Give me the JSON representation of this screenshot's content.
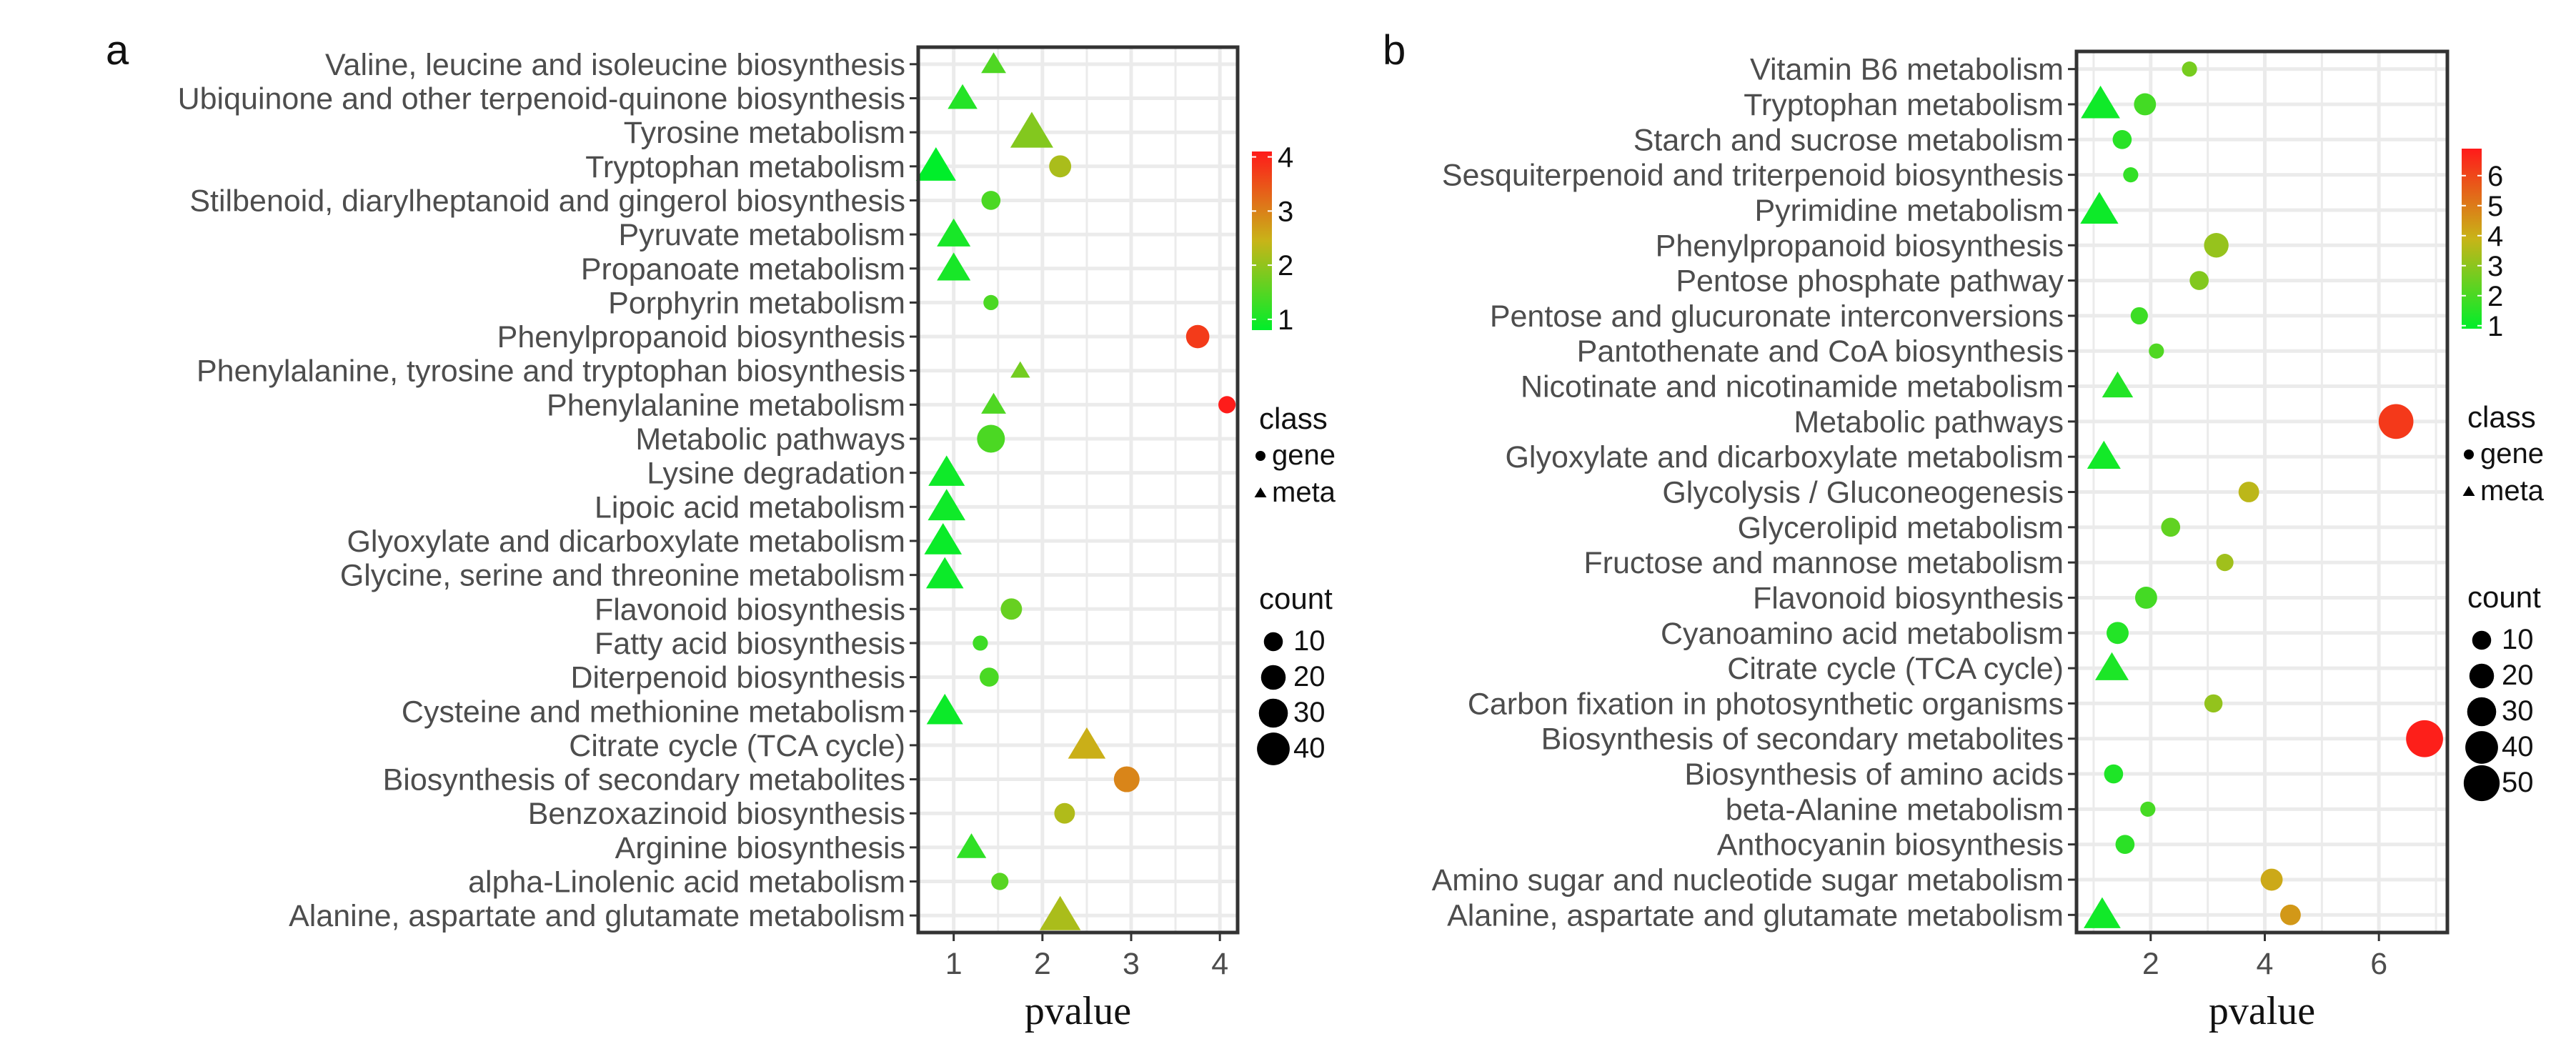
{
  "chart_data": [
    {
      "type": "scatter",
      "panel": "a",
      "xlabel": "pvalue",
      "xlim": [
        0.6,
        4.2
      ],
      "xticks": [
        1,
        2,
        3,
        4
      ],
      "categories": [
        "Valine, leucine and isoleucine biosynthesis",
        "Ubiquinone and other terpenoid-quinone biosynthesis",
        "Tyrosine metabolism",
        "Tryptophan metabolism",
        "Stilbenoid, diarylheptanoid and gingerol biosynthesis",
        "Pyruvate metabolism",
        "Propanoate metabolism",
        "Porphyrin metabolism",
        "Phenylpropanoid biosynthesis",
        "Phenylalanine, tyrosine and tryptophan biosynthesis",
        "Phenylalanine metabolism",
        "Metabolic pathways",
        "Lysine degradation",
        "Lipoic acid metabolism",
        "Glyoxylate and dicarboxylate metabolism",
        "Glycine, serine and threonine metabolism",
        "Flavonoid biosynthesis",
        "Fatty acid biosynthesis",
        "Diterpenoid biosynthesis",
        "Cysteine and methionine metabolism",
        "Citrate cycle (TCA cycle)",
        "Biosynthesis of secondary metabolites",
        "Benzoxazinoid biosynthesis",
        "Arginine biosynthesis",
        "alpha-Linolenic acid metabolism",
        "Alanine, aspartate and glutamate metabolism"
      ],
      "points": [
        {
          "category": "Valine, leucine and isoleucine biosynthesis",
          "pvalue": 1.45,
          "class": "meta",
          "count": 10
        },
        {
          "category": "Ubiquinone and other terpenoid-quinone biosynthesis",
          "pvalue": 1.1,
          "class": "meta",
          "count": 16
        },
        {
          "category": "Tyrosine metabolism",
          "pvalue": 1.88,
          "class": "meta",
          "count": 40
        },
        {
          "category": "Tryptophan metabolism",
          "pvalue": 0.8,
          "class": "meta",
          "count": 34
        },
        {
          "category": "Tryptophan metabolism",
          "pvalue": 2.2,
          "class": "gene",
          "count": 12
        },
        {
          "category": "Stilbenoid, diarylheptanoid and gingerol biosynthesis",
          "pvalue": 1.42,
          "class": "gene",
          "count": 8
        },
        {
          "category": "Pyruvate metabolism",
          "pvalue": 1.0,
          "class": "meta",
          "count": 22
        },
        {
          "category": "Propanoate metabolism",
          "pvalue": 1.0,
          "class": "meta",
          "count": 22
        },
        {
          "category": "Porphyrin metabolism",
          "pvalue": 1.42,
          "class": "gene",
          "count": 4
        },
        {
          "category": "Phenylpropanoid biosynthesis",
          "pvalue": 3.75,
          "class": "gene",
          "count": 14
        },
        {
          "category": "Phenylalanine, tyrosine and tryptophan biosynthesis",
          "pvalue": 1.75,
          "class": "meta",
          "count": 5
        },
        {
          "category": "Phenylalanine metabolism",
          "pvalue": 4.08,
          "class": "gene",
          "count": 6
        },
        {
          "category": "Phenylalanine metabolism",
          "pvalue": 1.45,
          "class": "meta",
          "count": 10
        },
        {
          "category": "Metabolic pathways",
          "pvalue": 1.42,
          "class": "gene",
          "count": 22
        },
        {
          "category": "Lysine degradation",
          "pvalue": 0.92,
          "class": "meta",
          "count": 27
        },
        {
          "category": "Lipoic acid metabolism",
          "pvalue": 0.92,
          "class": "meta",
          "count": 29
        },
        {
          "category": "Glyoxylate and dicarboxylate metabolism",
          "pvalue": 0.88,
          "class": "meta",
          "count": 29
        },
        {
          "category": "Glycine, serine and threonine metabolism",
          "pvalue": 0.9,
          "class": "meta",
          "count": 29
        },
        {
          "category": "Flavonoid biosynthesis",
          "pvalue": 1.65,
          "class": "gene",
          "count": 11
        },
        {
          "category": "Fatty acid biosynthesis",
          "pvalue": 1.3,
          "class": "gene",
          "count": 4
        },
        {
          "category": "Diterpenoid biosynthesis",
          "pvalue": 1.4,
          "class": "gene",
          "count": 8
        },
        {
          "category": "Cysteine and methionine metabolism",
          "pvalue": 0.9,
          "class": "meta",
          "count": 27
        },
        {
          "category": "Citrate cycle (TCA cycle)",
          "pvalue": 2.5,
          "class": "meta",
          "count": 29
        },
        {
          "category": "Biosynthesis of secondary metabolites",
          "pvalue": 2.95,
          "class": "gene",
          "count": 18
        },
        {
          "category": "Benzoxazinoid biosynthesis",
          "pvalue": 2.25,
          "class": "gene",
          "count": 10
        },
        {
          "category": "Arginine biosynthesis",
          "pvalue": 1.2,
          "class": "meta",
          "count": 16
        },
        {
          "category": "alpha-Linolenic acid metabolism",
          "pvalue": 1.52,
          "class": "gene",
          "count": 6
        },
        {
          "category": "Alanine, aspartate and glutamate metabolism",
          "pvalue": 2.2,
          "class": "meta",
          "count": 36
        }
      ],
      "color_scale": {
        "min": 0.8,
        "max": 4.1,
        "ticks": [
          1,
          2,
          3,
          4
        ],
        "low": "#00ee2a",
        "mid": "#c8b418",
        "high": "#ff1a1a"
      },
      "class_legend": {
        "title": "class",
        "items": [
          {
            "label": "gene",
            "shape": "circle"
          },
          {
            "label": "meta",
            "shape": "triangle"
          }
        ]
      },
      "size_legend": {
        "title": "count",
        "values": [
          10,
          20,
          30,
          40
        ]
      }
    },
    {
      "type": "scatter",
      "panel": "b",
      "xlabel": "pvalue",
      "xlim": [
        0.7,
        7.2
      ],
      "xticks": [
        2,
        4,
        6
      ],
      "categories": [
        "Vitamin B6 metabolism",
        "Tryptophan metabolism",
        "Starch and sucrose metabolism",
        "Sesquiterpenoid and triterpenoid biosynthesis",
        "Pyrimidine metabolism",
        "Phenylpropanoid biosynthesis",
        "Pentose phosphate pathway",
        "Pentose and glucuronate interconversions",
        "Pantothenate and CoA biosynthesis",
        "Nicotinate and nicotinamide metabolism",
        "Metabolic pathways",
        "Glyoxylate and dicarboxylate metabolism",
        "Glycolysis / Gluconeogenesis",
        "Glycerolipid metabolism",
        "Fructose and mannose metabolism",
        "Flavonoid biosynthesis",
        "Cyanoamino acid metabolism",
        "Citrate cycle (TCA cycle)",
        "Carbon fixation in photosynthetic organisms",
        "Biosynthesis of secondary metabolites",
        "Biosynthesis of amino acids",
        "beta-Alanine metabolism",
        "Anthocyanin biosynthesis",
        "Amino sugar and nucleotide sugar metabolism",
        "Alanine, aspartate and glutamate metabolism"
      ],
      "points": [
        {
          "category": "Vitamin B6 metabolism",
          "pvalue": 2.68,
          "class": "gene",
          "count": 4
        },
        {
          "category": "Tryptophan metabolism",
          "pvalue": 1.12,
          "class": "meta",
          "count": 32
        },
        {
          "category": "Tryptophan metabolism",
          "pvalue": 1.9,
          "class": "gene",
          "count": 12
        },
        {
          "category": "Starch and sucrose metabolism",
          "pvalue": 1.5,
          "class": "gene",
          "count": 8
        },
        {
          "category": "Sesquiterpenoid and triterpenoid biosynthesis",
          "pvalue": 1.65,
          "class": "gene",
          "count": 4
        },
        {
          "category": "Pyrimidine metabolism",
          "pvalue": 1.1,
          "class": "meta",
          "count": 30
        },
        {
          "category": "Phenylpropanoid biosynthesis",
          "pvalue": 3.15,
          "class": "gene",
          "count": 16
        },
        {
          "category": "Pentose phosphate pathway",
          "pvalue": 2.85,
          "class": "gene",
          "count": 8
        },
        {
          "category": "Pentose and glucuronate interconversions",
          "pvalue": 1.8,
          "class": "gene",
          "count": 6
        },
        {
          "category": "Pantothenate and CoA biosynthesis",
          "pvalue": 2.1,
          "class": "gene",
          "count": 4
        },
        {
          "category": "Nicotinate and nicotinamide metabolism",
          "pvalue": 1.42,
          "class": "meta",
          "count": 18
        },
        {
          "category": "Metabolic pathways",
          "pvalue": 6.3,
          "class": "gene",
          "count": 38
        },
        {
          "category": "Glyoxylate and dicarboxylate metabolism",
          "pvalue": 1.18,
          "class": "meta",
          "count": 22
        },
        {
          "category": "Glycolysis / Gluconeogenesis",
          "pvalue": 3.72,
          "class": "gene",
          "count": 10
        },
        {
          "category": "Glycerolipid metabolism",
          "pvalue": 2.35,
          "class": "gene",
          "count": 8
        },
        {
          "category": "Fructose and mannose metabolism",
          "pvalue": 3.3,
          "class": "gene",
          "count": 6
        },
        {
          "category": "Flavonoid biosynthesis",
          "pvalue": 1.92,
          "class": "gene",
          "count": 12
        },
        {
          "category": "Cyanoamino acid metabolism",
          "pvalue": 1.42,
          "class": "gene",
          "count": 12
        },
        {
          "category": "Citrate cycle (TCA cycle)",
          "pvalue": 1.32,
          "class": "meta",
          "count": 22
        },
        {
          "category": "Carbon fixation in photosynthetic organisms",
          "pvalue": 3.1,
          "class": "gene",
          "count": 7
        },
        {
          "category": "Biosynthesis of secondary metabolites",
          "pvalue": 6.8,
          "class": "gene",
          "count": 44
        },
        {
          "category": "Biosynthesis of amino acids",
          "pvalue": 1.35,
          "class": "gene",
          "count": 8
        },
        {
          "category": "beta-Alanine metabolism",
          "pvalue": 1.95,
          "class": "gene",
          "count": 4
        },
        {
          "category": "Anthocyanin biosynthesis",
          "pvalue": 1.55,
          "class": "gene",
          "count": 8
        },
        {
          "category": "Amino sugar and nucleotide sugar metabolism",
          "pvalue": 4.12,
          "class": "gene",
          "count": 12
        },
        {
          "category": "Alanine, aspartate and glutamate metabolism",
          "pvalue": 4.45,
          "class": "gene",
          "count": 10
        },
        {
          "category": "Alanine, aspartate and glutamate metabolism",
          "pvalue": 1.15,
          "class": "meta",
          "count": 28
        }
      ],
      "color_scale": {
        "min": 0.9,
        "max": 6.9,
        "ticks": [
          1,
          2,
          3,
          4,
          5,
          6
        ],
        "low": "#00ee2a",
        "mid": "#c8b418",
        "high": "#ff1a1a"
      },
      "class_legend": {
        "title": "class",
        "items": [
          {
            "label": "gene",
            "shape": "circle"
          },
          {
            "label": "meta",
            "shape": "triangle"
          }
        ]
      },
      "size_legend": {
        "title": "count",
        "values": [
          10,
          20,
          30,
          40,
          50
        ]
      }
    }
  ]
}
